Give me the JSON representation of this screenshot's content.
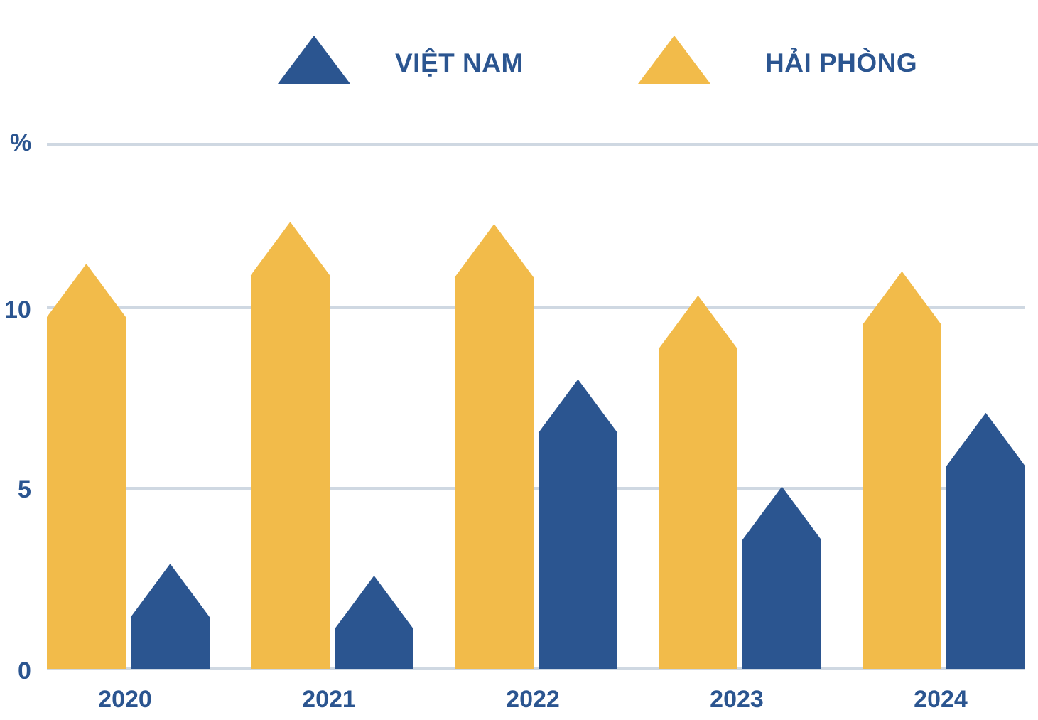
{
  "chart_data": {
    "type": "bar",
    "title": "",
    "xlabel": "",
    "ylabel": "%",
    "ylim": [
      0,
      14.5
    ],
    "yticks": [
      0,
      5,
      10
    ],
    "grid": true,
    "legend_position": "top",
    "categories": [
      "2020",
      "2021",
      "2022",
      "2023",
      "2024"
    ],
    "series": [
      {
        "name": "HẢI PHÒNG",
        "color": "#f2bb4a",
        "values": [
          11.22,
          12.38,
          12.32,
          10.34,
          11.01
        ]
      },
      {
        "name": "VIỆT NAM",
        "color": "#2b5590",
        "values": [
          2.91,
          2.58,
          8.02,
          5.05,
          7.09
        ]
      }
    ]
  },
  "legend": {
    "items": [
      {
        "label": "VIỆT NAM",
        "color": "#2b5590"
      },
      {
        "label": "HẢI PHÒNG",
        "color": "#f2bb4a"
      }
    ]
  },
  "axis": {
    "unit_label": "%",
    "tick_labels": [
      "0",
      "5",
      "10"
    ],
    "gridline_color": "#cfd8e2"
  }
}
